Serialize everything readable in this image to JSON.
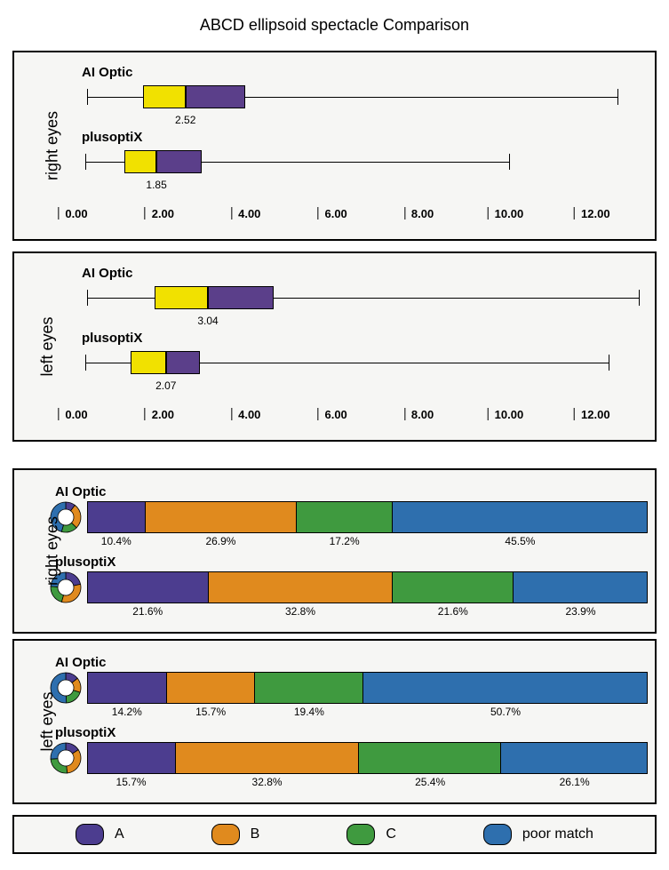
{
  "title": "ABCD ellipsoid spectacle Comparison",
  "colors": {
    "box_left": "#f1e100",
    "box_right": "#5b3f8a",
    "A": "#4c3d8f",
    "B": "#e08a1e",
    "C": "#3f9a3f",
    "D": "#2e6fae",
    "panel_bg": "#f6f6f4",
    "border": "#000000"
  },
  "box_plots": {
    "axis": {
      "min": 0,
      "max": 13,
      "ticks": [
        0,
        2,
        4,
        6,
        8,
        10,
        12
      ],
      "tick_labels": [
        "0.00",
        "2.00",
        "4.00",
        "6.00",
        "8.00",
        "10.00",
        "12.00"
      ]
    },
    "panels": [
      {
        "side_label": "right eyes",
        "rows": [
          {
            "label": "AI Optic",
            "whisker_lo": 0.25,
            "q1": 1.55,
            "median": 2.52,
            "q3": 3.9,
            "whisker_hi": 12.5,
            "median_label": "2.52"
          },
          {
            "label": "plusoptiX",
            "whisker_lo": 0.2,
            "q1": 1.1,
            "median": 1.85,
            "q3": 2.9,
            "whisker_hi": 10.0,
            "median_label": "1.85"
          }
        ]
      },
      {
        "side_label": "left eyes",
        "rows": [
          {
            "label": "AI Optic",
            "whisker_lo": 0.25,
            "q1": 1.8,
            "median": 3.04,
            "q3": 4.55,
            "whisker_hi": 13.0,
            "median_label": "3.04"
          },
          {
            "label": "plusoptiX",
            "whisker_lo": 0.2,
            "q1": 1.25,
            "median": 2.07,
            "q3": 2.85,
            "whisker_hi": 12.3,
            "median_label": "2.07"
          }
        ]
      }
    ]
  },
  "stacked_bars": {
    "panels": [
      {
        "side_label": "right eyes",
        "rows": [
          {
            "label": "AI Optic",
            "values": [
              10.4,
              26.9,
              17.2,
              45.5
            ],
            "labels": [
              "10.4%",
              "26.9%",
              "17.2%",
              "45.5%"
            ]
          },
          {
            "label": "plusoptiX",
            "values": [
              21.6,
              32.8,
              21.6,
              23.9
            ],
            "labels": [
              "21.6%",
              "32.8%",
              "21.6%",
              "23.9%"
            ]
          }
        ]
      },
      {
        "side_label": "left eyes",
        "rows": [
          {
            "label": "AI Optic",
            "values": [
              14.2,
              15.7,
              19.4,
              50.7
            ],
            "labels": [
              "14.2%",
              "15.7%",
              "19.4%",
              "50.7%"
            ]
          },
          {
            "label": "plusoptiX",
            "values": [
              15.7,
              32.8,
              25.4,
              26.1
            ],
            "labels": [
              "15.7%",
              "32.8%",
              "25.4%",
              "26.1%"
            ]
          }
        ]
      }
    ]
  },
  "legend": [
    {
      "key": "A",
      "label": "A"
    },
    {
      "key": "B",
      "label": "B"
    },
    {
      "key": "C",
      "label": "C"
    },
    {
      "key": "D",
      "label": "poor match"
    }
  ]
}
